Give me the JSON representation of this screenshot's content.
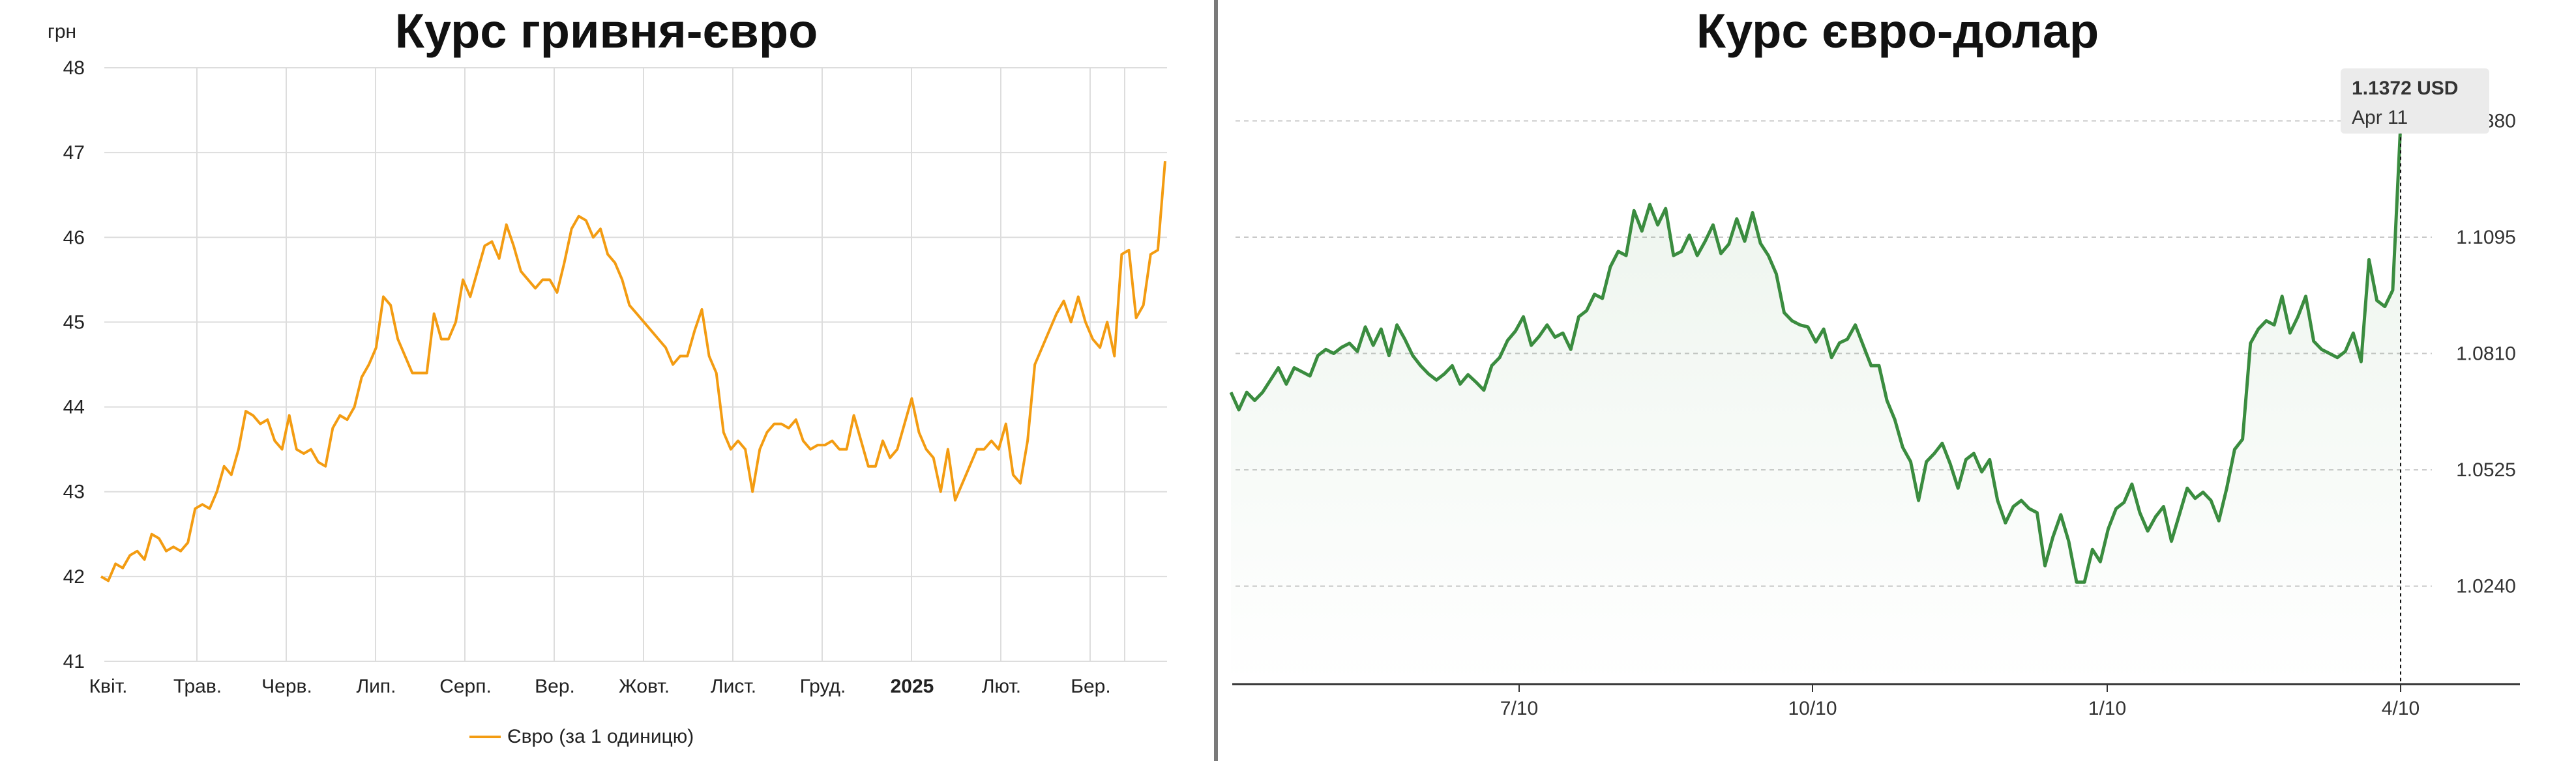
{
  "chart_data": [
    {
      "type": "line",
      "title": "Курс гривня-євро",
      "ylabel": "грн",
      "ylim": [
        41,
        48
      ],
      "y_ticks": [
        41,
        42,
        43,
        44,
        45,
        46,
        47,
        48
      ],
      "x_tick_labels": [
        "Квіт.",
        "Трав.",
        "Черв.",
        "Лип.",
        "Серп.",
        "Вер.",
        "Жовт.",
        "Лист.",
        "Груд.",
        "2025",
        "Лют.",
        "Бер."
      ],
      "grid": true,
      "legend_position": "bottom",
      "series": [
        {
          "name": "Євро (за 1 одиницю)",
          "color": "#f39c12",
          "values": [
            42.0,
            41.95,
            42.15,
            42.1,
            42.25,
            42.3,
            42.2,
            42.5,
            42.45,
            42.3,
            42.35,
            42.3,
            42.4,
            42.8,
            42.85,
            42.8,
            43.0,
            43.3,
            43.2,
            43.5,
            43.95,
            43.9,
            43.8,
            43.85,
            43.6,
            43.5,
            43.9,
            43.5,
            43.45,
            43.5,
            43.35,
            43.3,
            43.75,
            43.9,
            43.85,
            44.0,
            44.35,
            44.5,
            44.7,
            45.3,
            45.2,
            44.8,
            44.6,
            44.4,
            44.4,
            44.4,
            45.1,
            44.8,
            44.8,
            45.0,
            45.5,
            45.3,
            45.6,
            45.9,
            45.95,
            45.75,
            46.15,
            45.9,
            45.6,
            45.5,
            45.4,
            45.5,
            45.5,
            45.35,
            45.7,
            46.1,
            46.25,
            46.2,
            46.0,
            46.1,
            45.8,
            45.7,
            45.5,
            45.2,
            45.1,
            45.0,
            44.9,
            44.8,
            44.7,
            44.5,
            44.6,
            44.6,
            44.9,
            45.15,
            44.6,
            44.4,
            43.7,
            43.5,
            43.6,
            43.5,
            43.0,
            43.5,
            43.7,
            43.8,
            43.8,
            43.75,
            43.85,
            43.6,
            43.5,
            43.55,
            43.55,
            43.6,
            43.5,
            43.5,
            43.9,
            43.6,
            43.3,
            43.3,
            43.6,
            43.4,
            43.5,
            43.8,
            44.1,
            43.7,
            43.5,
            43.4,
            43.0,
            43.5,
            42.9,
            43.1,
            43.3,
            43.5,
            43.5,
            43.6,
            43.5,
            43.8,
            43.2,
            43.1,
            43.6,
            44.5,
            44.7,
            44.9,
            45.1,
            45.25,
            45.0,
            45.3,
            45.0,
            44.8,
            44.7,
            45.0,
            44.6,
            45.8,
            45.85,
            45.05,
            45.2,
            45.8,
            45.85,
            46.9
          ]
        }
      ]
    },
    {
      "type": "line",
      "title": "Курс євро-долар",
      "ylim": [
        1.0,
        1.151
      ],
      "y_ticks": [
        1.024,
        1.0525,
        1.081,
        1.1095,
        1.138
      ],
      "y_tick_labels": [
        "1.0240",
        "1.0525",
        "1.0810",
        "1.1095",
        "1.1380"
      ],
      "x_tick_labels": [
        "7/10",
        "10/10",
        "1/10",
        "4/10"
      ],
      "grid": true,
      "tooltip": {
        "value": "1.1372 USD",
        "date": "Apr 11"
      },
      "series": [
        {
          "color": "#3a8c3f",
          "values": [
            1.0715,
            1.0672,
            1.0715,
            1.0695,
            1.0715,
            1.0745,
            1.0775,
            1.0735,
            1.0775,
            1.0765,
            1.0755,
            1.0805,
            1.082,
            1.081,
            1.0825,
            1.0835,
            1.0815,
            1.0875,
            1.083,
            1.087,
            1.0805,
            1.088,
            1.0845,
            1.0805,
            1.078,
            1.076,
            1.0745,
            1.076,
            1.078,
            1.0735,
            1.0758,
            1.074,
            1.072,
            1.078,
            1.08,
            1.0842,
            1.0865,
            1.09,
            1.083,
            1.0852,
            1.088,
            1.085,
            1.086,
            1.082,
            1.09,
            1.0915,
            1.0955,
            1.0945,
            1.1022,
            1.106,
            1.105,
            1.116,
            1.111,
            1.1175,
            1.1125,
            1.1165,
            1.105,
            1.106,
            1.11,
            1.105,
            1.1085,
            1.1125,
            1.1055,
            1.1078,
            1.114,
            1.1085,
            1.1155,
            1.108,
            1.105,
            1.1005,
            1.091,
            1.089,
            1.088,
            1.0875,
            1.0838,
            1.087,
            1.08,
            1.0836,
            1.0845,
            1.088,
            1.083,
            1.078,
            1.078,
            1.0695,
            1.0648,
            1.058,
            1.0545,
            1.045,
            1.0545,
            1.0565,
            1.059,
            1.054,
            1.048,
            1.055,
            1.0565,
            1.052,
            1.055,
            1.045,
            1.0395,
            1.0435,
            1.045,
            1.043,
            1.042,
            1.029,
            1.036,
            1.0415,
            1.035,
            1.025,
            1.025,
            1.033,
            1.03,
            1.038,
            1.043,
            1.0445,
            1.049,
            1.042,
            1.0375,
            1.041,
            1.0435,
            1.035,
            1.0415,
            1.048,
            1.0455,
            1.047,
            1.045,
            1.04,
            1.048,
            1.0575,
            1.06,
            1.0835,
            1.087,
            1.089,
            1.088,
            1.095,
            1.086,
            1.09,
            1.095,
            1.084,
            1.082,
            1.081,
            1.08,
            1.0815,
            1.086,
            1.079,
            1.104,
            1.094,
            1.0925,
            1.0965,
            1.1372
          ]
        }
      ]
    }
  ]
}
